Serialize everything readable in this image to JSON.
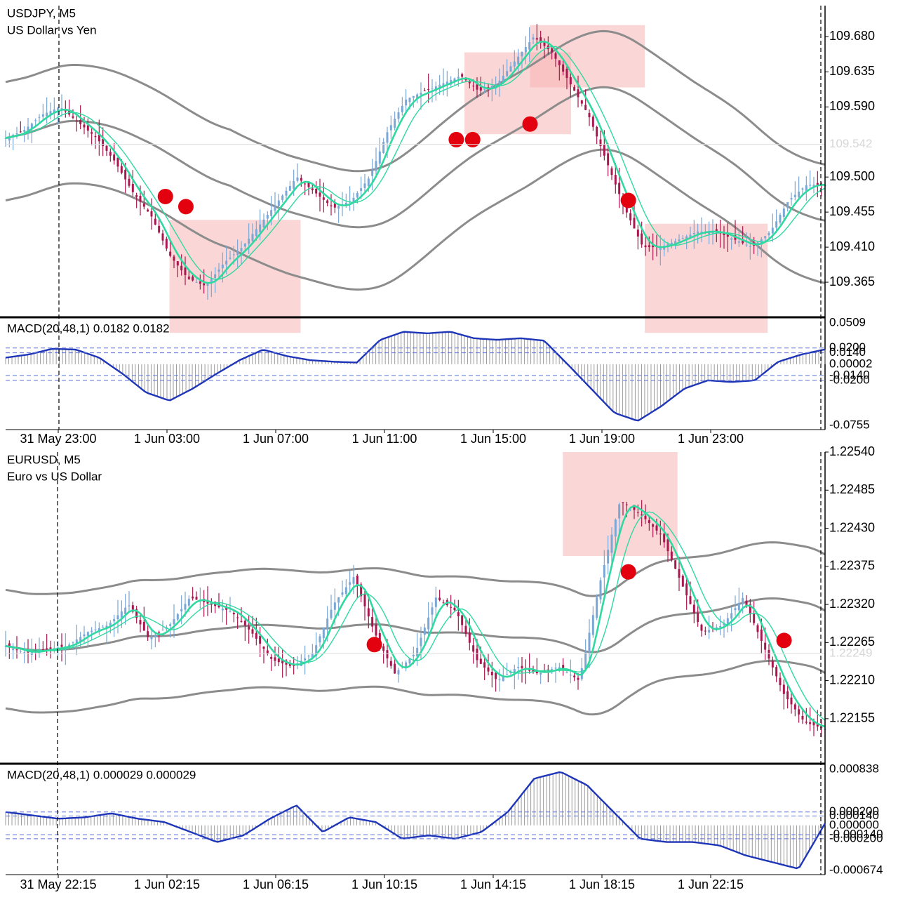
{
  "chart_data": [
    {
      "type": "candlestick",
      "symbol": "USDJPY, M5",
      "description": "US Dollar vs Yen",
      "ylim": [
        109.32,
        109.72
      ],
      "y_ticks": [
        "109.680",
        "109.635",
        "109.590",
        "109.500",
        "109.455",
        "109.410",
        "109.365"
      ],
      "current_price_label": "109.542",
      "current_price": 109.542,
      "x_ticks": [
        "31 May 23:00",
        "1 Jun 03:00",
        "1 Jun 07:00",
        "1 Jun 11:00",
        "1 Jun 15:00",
        "1 Jun 19:00",
        "1 Jun 23:00"
      ],
      "close_path": [
        109.55,
        109.56,
        109.58,
        109.59,
        109.57,
        109.55,
        109.52,
        109.48,
        109.45,
        109.4,
        109.37,
        109.36,
        109.39,
        109.41,
        109.44,
        109.47,
        109.5,
        109.48,
        109.46,
        109.47,
        109.5,
        109.56,
        109.6,
        109.61,
        109.62,
        109.63,
        109.61,
        109.62,
        109.65,
        109.68,
        109.66,
        109.62,
        109.58,
        109.52,
        109.46,
        109.41,
        109.41,
        109.42,
        109.43,
        109.43,
        109.42,
        109.41,
        109.43,
        109.47,
        109.49,
        109.49
      ],
      "signal_points": [
        109.475,
        109.462,
        109.548,
        109.548,
        109.568,
        109.47
      ],
      "highlight_boxes": [
        {
          "from": 0.2,
          "to": 0.36,
          "top": 109.445,
          "bottom": 109.3
        },
        {
          "from": 0.56,
          "to": 0.69,
          "top": 109.66,
          "bottom": 109.555
        },
        {
          "from": 0.64,
          "to": 0.78,
          "top": 109.695,
          "bottom": 109.615
        },
        {
          "from": 0.78,
          "to": 0.93,
          "top": 109.44,
          "bottom": 109.3
        }
      ],
      "macd": {
        "label": "MACD(20,48,1) 0.0182 0.0182",
        "ylim": [
          -0.0755,
          0.0509
        ],
        "y_ticks": [
          "0.0509",
          "0.0200",
          "0.0140",
          "0.00002",
          "-0.0140",
          "-0.0200",
          "-0.0755"
        ],
        "levels": [
          0.02,
          0.014,
          -0.014,
          -0.02
        ],
        "path": [
          0.008,
          0.012,
          0.019,
          0.018,
          0.008,
          -0.012,
          -0.035,
          -0.045,
          -0.03,
          -0.012,
          0.005,
          0.018,
          0.01,
          0.005,
          0.003,
          0.002,
          0.03,
          0.04,
          0.038,
          0.04,
          0.032,
          0.03,
          0.032,
          0.029,
          0.0,
          -0.03,
          -0.06,
          -0.07,
          -0.052,
          -0.03,
          -0.02,
          -0.022,
          -0.02,
          0.003,
          0.012,
          0.0182
        ]
      }
    },
    {
      "type": "candlestick",
      "symbol": "EURUSD, M5",
      "description": "Euro vs US Dollar",
      "ylim": [
        1.2209,
        1.2254
      ],
      "y_ticks": [
        "1.22540",
        "1.22485",
        "1.22430",
        "1.22375",
        "1.22320",
        "1.22265",
        "1.22210",
        "1.22155"
      ],
      "current_price_label": "1.22249",
      "current_price": 1.22249,
      "x_ticks": [
        "31 May 22:15",
        "1 Jun 02:15",
        "1 Jun 06:15",
        "1 Jun 10:15",
        "1 Jun 14:15",
        "1 Jun 18:15",
        "1 Jun 22:15"
      ],
      "close_path": [
        1.2226,
        1.2225,
        1.22255,
        1.2226,
        1.2228,
        1.2229,
        1.2232,
        1.2227,
        1.2229,
        1.2233,
        1.2232,
        1.2231,
        1.2228,
        1.2224,
        1.2223,
        1.2225,
        1.2232,
        1.2236,
        1.2228,
        1.2222,
        1.2225,
        1.2233,
        1.2231,
        1.2224,
        1.2221,
        1.2223,
        1.2222,
        1.2223,
        1.2221,
        1.2235,
        1.2247,
        1.2245,
        1.2242,
        1.2235,
        1.2228,
        1.2229,
        1.2233,
        1.2226,
        1.2219,
        1.2215,
        1.2214
      ],
      "signal_points": [
        1.22262,
        1.22367,
        1.22268
      ],
      "highlight_boxes": [
        {
          "from": 0.68,
          "to": 0.82,
          "top": 1.2254,
          "bottom": 1.2239
        }
      ],
      "macd": {
        "label": "MACD(20,48,1) 0.000029 0.000029",
        "ylim": [
          -0.000674,
          0.000838
        ],
        "y_ticks": [
          "0.000838",
          "0.000200",
          "0.000140",
          "0.000000",
          "-0.000140",
          "-0.000200",
          "-0.000674"
        ],
        "levels": [
          0.0002,
          0.00014,
          -0.00014,
          -0.0002
        ],
        "path": [
          0.0002,
          0.00015,
          0.0001,
          0.00012,
          0.00018,
          0.0001,
          5e-05,
          -0.0001,
          -0.00025,
          -0.00015,
          0.0001,
          0.0003,
          -0.0001,
          0.00012,
          5e-05,
          -0.0002,
          -0.00015,
          -0.0002,
          -0.0001,
          0.0002,
          0.0007,
          0.0008,
          0.0006,
          0.0002,
          -0.0002,
          -0.00025,
          -0.00025,
          -0.0003,
          -0.00045,
          -0.00055,
          -0.00065,
          2.9e-05
        ]
      }
    }
  ]
}
